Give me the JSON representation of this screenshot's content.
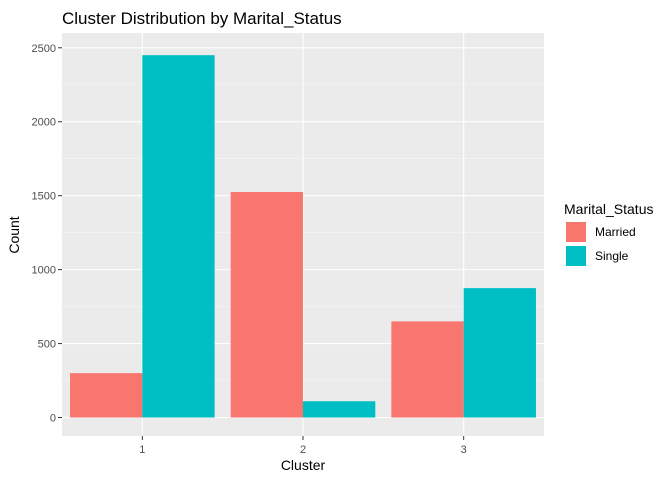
{
  "chart_data": {
    "type": "bar",
    "title": "Cluster Distribution by Marital_Status",
    "xlabel": "Cluster",
    "ylabel": "Count",
    "categories": [
      "1",
      "2",
      "3"
    ],
    "series": [
      {
        "name": "Married",
        "values": [
          300,
          1525,
          650
        ],
        "color": "#F8766D"
      },
      {
        "name": "Single",
        "values": [
          2450,
          110,
          875
        ],
        "color": "#00BFC4"
      }
    ],
    "ylim": [
      -125,
      2600
    ],
    "yticks": [
      0,
      500,
      1000,
      1500,
      2000,
      2500
    ],
    "grid": true,
    "legend": {
      "title": "Marital_Status",
      "position": "right"
    }
  }
}
